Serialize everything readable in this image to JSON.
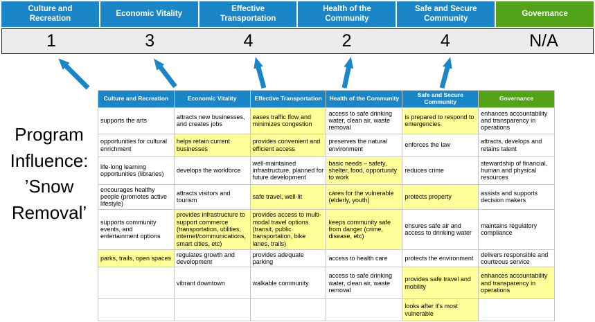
{
  "slide": {
    "program_label": "Program\nInfluence:\n’Snow\nRemoval’"
  },
  "colors": {
    "header_blue": "#1a86c8",
    "header_green": "#53a318",
    "highlight_yellow": "#ffff99",
    "arrow_blue": "#1a86c8",
    "score_strip_bg": "#ececec"
  },
  "scoreboard": {
    "columns": [
      {
        "label": "Culture and Recreation",
        "score": "1",
        "color_key": "header_blue"
      },
      {
        "label": "Economic Vitality",
        "score": "3",
        "color_key": "header_blue"
      },
      {
        "label": "Effective Transportation",
        "score": "4",
        "color_key": "header_blue"
      },
      {
        "label": "Health of the Community",
        "score": "2",
        "color_key": "header_blue"
      },
      {
        "label": "Safe and Secure Community",
        "score": "4",
        "color_key": "header_blue"
      },
      {
        "label": "Governance",
        "score": "N/A",
        "color_key": "header_green"
      }
    ]
  },
  "matrix": {
    "headers": [
      {
        "label": "Culture and Recreation",
        "color_key": "header_blue"
      },
      {
        "label": "Economic Vitality",
        "color_key": "header_blue"
      },
      {
        "label": "Effective Transportation",
        "color_key": "header_blue"
      },
      {
        "label": "Health of the Community",
        "color_key": "header_blue"
      },
      {
        "label": "Safe and Secure Community",
        "color_key": "header_blue"
      },
      {
        "label": "Governance",
        "color_key": "header_green"
      }
    ],
    "rows": [
      {
        "cells": [
          {
            "text": "supports the arts",
            "highlight": false
          },
          {
            "text": "attracts new businesses, and creates jobs",
            "highlight": false
          },
          {
            "text": "eases traffic flow and minimizes congestion",
            "highlight": true
          },
          {
            "text": "access to safe drinking water, clean air, waste removal",
            "highlight": false
          },
          {
            "text": "is prepared to respond to emergencies",
            "highlight": true
          },
          {
            "text": "enhances accountability and transparency in operations",
            "highlight": false
          }
        ]
      },
      {
        "cells": [
          {
            "text": "opportunities for cultural enrichment",
            "highlight": false
          },
          {
            "text": "helps retain current businesses",
            "highlight": true
          },
          {
            "text": "provides convenient and efficient access",
            "highlight": true
          },
          {
            "text": "preserves the natural environment",
            "highlight": false
          },
          {
            "text": "enforces the law",
            "highlight": false
          },
          {
            "text": "attracts, develops and retains talent",
            "highlight": false
          }
        ]
      },
      {
        "cells": [
          {
            "text": "life-long learning opportunities (libraries)",
            "highlight": false
          },
          {
            "text": "develops the workforce",
            "highlight": false
          },
          {
            "text": "well-maintained infrastructure, planned for future development",
            "highlight": false
          },
          {
            "text": "basic needs – safety, shelter, food, opportunity to work",
            "highlight": true
          },
          {
            "text": "reduces crime",
            "highlight": false
          },
          {
            "text": "stewardship of financial, human and physical resources",
            "highlight": false
          }
        ]
      },
      {
        "cells": [
          {
            "text": "encourages healthy people (promotes active lifestyle)",
            "highlight": false
          },
          {
            "text": "attracts visitors and tourism",
            "highlight": false
          },
          {
            "text": "safe travel, well-lit",
            "highlight": true
          },
          {
            "text": "cares for the vulnerable (elderly, youth)",
            "highlight": true
          },
          {
            "text": "protects property",
            "highlight": true
          },
          {
            "text": "assists and supports decision makers",
            "highlight": false
          }
        ]
      },
      {
        "cells": [
          {
            "text": "supports community events, and entertainment options",
            "highlight": false
          },
          {
            "text": "provides infrastructure to support commerce (transportation, utilities, internet/communications, smart cities, etc)",
            "highlight": true
          },
          {
            "text": "provides access to multi-modal travel options (transit, public transportation, bike lanes, trails)",
            "highlight": true
          },
          {
            "text": "keeps community safe from danger (crime, disease, etc)",
            "highlight": true
          },
          {
            "text": "ensures safe air and access to drinking water",
            "highlight": false
          },
          {
            "text": "maintains regulatory compliance",
            "highlight": false
          }
        ]
      },
      {
        "cells": [
          {
            "text": "parks, trails, open spaces",
            "highlight": true
          },
          {
            "text": "regulates growth and development",
            "highlight": false
          },
          {
            "text": "provides adequate parking",
            "highlight": false
          },
          {
            "text": "access to health care",
            "highlight": false
          },
          {
            "text": "protects the environment",
            "highlight": false
          },
          {
            "text": "delivers responsible and courteous service",
            "highlight": false
          }
        ]
      },
      {
        "cells": [
          {
            "text": "",
            "highlight": false
          },
          {
            "text": "vibrant downtown",
            "highlight": false
          },
          {
            "text": "walkable community",
            "highlight": false
          },
          {
            "text": "access to safe drinking water, clean air, waste removal",
            "highlight": false
          },
          {
            "text": "provides safe travel and mobility",
            "highlight": true
          },
          {
            "text": "enhances accountability and transparency in operations",
            "highlight": true
          }
        ]
      },
      {
        "cells": [
          {
            "text": "",
            "highlight": false
          },
          {
            "text": "",
            "highlight": false
          },
          {
            "text": "",
            "highlight": false
          },
          {
            "text": "",
            "highlight": false
          },
          {
            "text": "looks after it's most vulnerable",
            "highlight": true
          },
          {
            "text": "",
            "highlight": false
          }
        ]
      }
    ]
  }
}
